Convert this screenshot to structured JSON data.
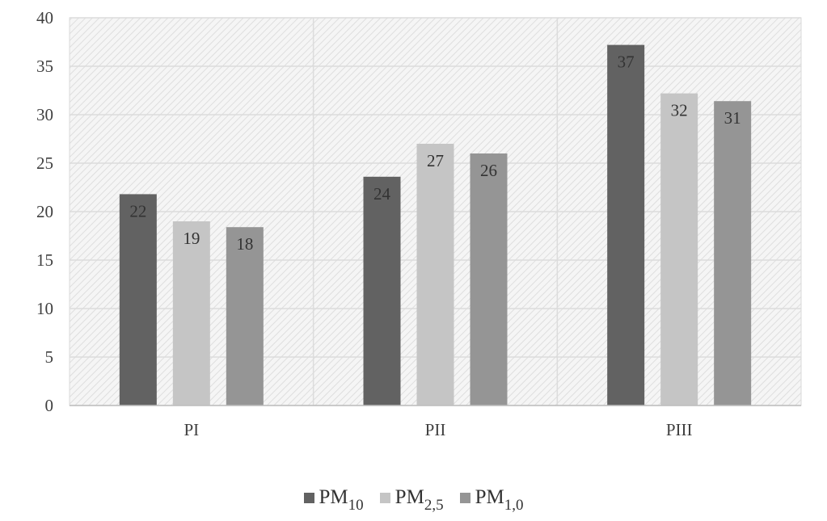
{
  "chart_data": {
    "type": "bar",
    "categories": [
      "PI",
      "PII",
      "PIII"
    ],
    "series": [
      {
        "name": "PM10",
        "name_base": "PM",
        "name_sub": "10",
        "color": "#626262",
        "values": [
          21.8,
          23.6,
          37.2
        ],
        "labels": [
          "22",
          "24",
          "37"
        ]
      },
      {
        "name": "PM2,5",
        "name_base": "PM",
        "name_sub": "2,5",
        "color": "#c5c5c5",
        "values": [
          19.0,
          27.0,
          32.2
        ],
        "labels": [
          "19",
          "27",
          "32"
        ]
      },
      {
        "name": "PM1,0",
        "name_base": "PM",
        "name_sub": "1,0",
        "color": "#959595",
        "values": [
          18.4,
          26.0,
          31.4
        ],
        "labels": [
          "18",
          "26",
          "31"
        ]
      }
    ],
    "yticks": [
      "0",
      "5",
      "10",
      "15",
      "20",
      "25",
      "30",
      "35",
      "40"
    ],
    "ylim": [
      0,
      40
    ],
    "grid": true,
    "legend_position": "bottom",
    "title": "",
    "xlabel": "",
    "ylabel": ""
  }
}
